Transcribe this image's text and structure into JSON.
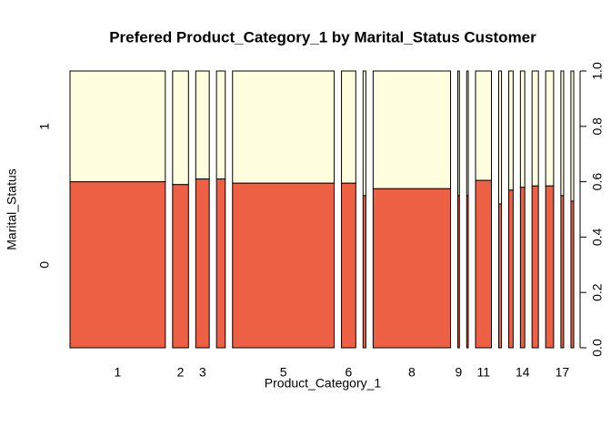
{
  "chart_data": {
    "type": "spineplot",
    "title": "Prefered Product_Category_1 by Marital_Status Customer",
    "x_label": "Product_Category_1",
    "y_label": "Marital_Status",
    "categories": [
      "1",
      "2",
      "3",
      null,
      "5",
      "6",
      null,
      "8",
      "9",
      null,
      "11",
      null,
      null,
      "14",
      null,
      null,
      "17",
      null
    ],
    "widths": [
      24,
      4,
      3.4,
      2.2,
      25.6,
      3.6,
      0.7,
      19.5,
      0.4,
      0.4,
      4,
      0.7,
      1.1,
      1.1,
      1.6,
      2,
      0.7,
      0.7
    ],
    "series": [
      {
        "name": "0",
        "color": "#ee6044",
        "values": [
          0.6,
          0.59,
          0.61,
          0.61,
          0.595,
          0.595,
          0.55,
          0.575,
          0.55,
          0.55,
          0.605,
          0.52,
          0.57,
          0.58,
          0.585,
          0.585,
          0.55,
          0.53
        ]
      },
      {
        "name": "1",
        "color": "#ffffe0",
        "values": [
          0.4,
          0.41,
          0.39,
          0.39,
          0.405,
          0.405,
          0.45,
          0.425,
          0.45,
          0.45,
          0.395,
          0.48,
          0.43,
          0.42,
          0.415,
          0.415,
          0.45,
          0.47
        ]
      }
    ],
    "ylim": [
      0,
      1
    ],
    "yticks": [
      {
        "value": 0,
        "label": "0.0"
      },
      {
        "value": 0.2,
        "label": "0.2"
      },
      {
        "value": 0.4,
        "label": "0.4"
      },
      {
        "value": 0.6,
        "label": "0.6"
      },
      {
        "value": 0.8,
        "label": "0.8"
      },
      {
        "value": 1,
        "label": "1.0"
      }
    ]
  }
}
